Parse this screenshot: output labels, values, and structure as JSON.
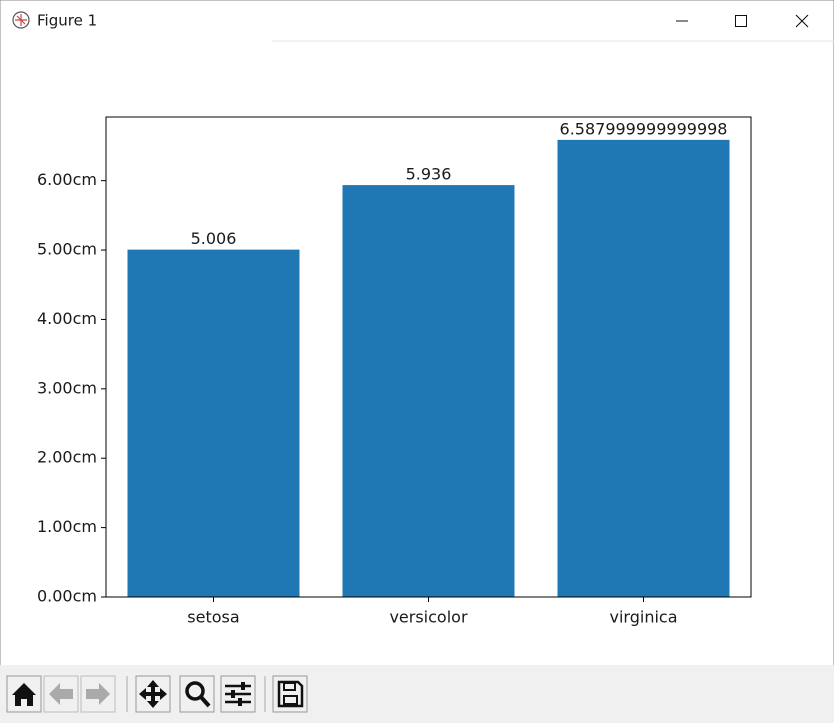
{
  "window": {
    "title": "Figure 1"
  },
  "chart_data": {
    "type": "bar",
    "categories": [
      "setosa",
      "versicolor",
      "virginica"
    ],
    "values": [
      5.006,
      5.936,
      6.587999999999998
    ],
    "color": "#1f77b4",
    "ylim": [
      0,
      6.9174
    ],
    "yticks": [
      {
        "value": 0,
        "label": "0.00cm"
      },
      {
        "value": 1,
        "label": "1.00cm"
      },
      {
        "value": 2,
        "label": "2.00cm"
      },
      {
        "value": 3,
        "label": "3.00cm"
      },
      {
        "value": 4,
        "label": "4.00cm"
      },
      {
        "value": 5,
        "label": "5.00cm"
      },
      {
        "value": 6,
        "label": "6.00cm"
      }
    ],
    "grid": false
  }
}
